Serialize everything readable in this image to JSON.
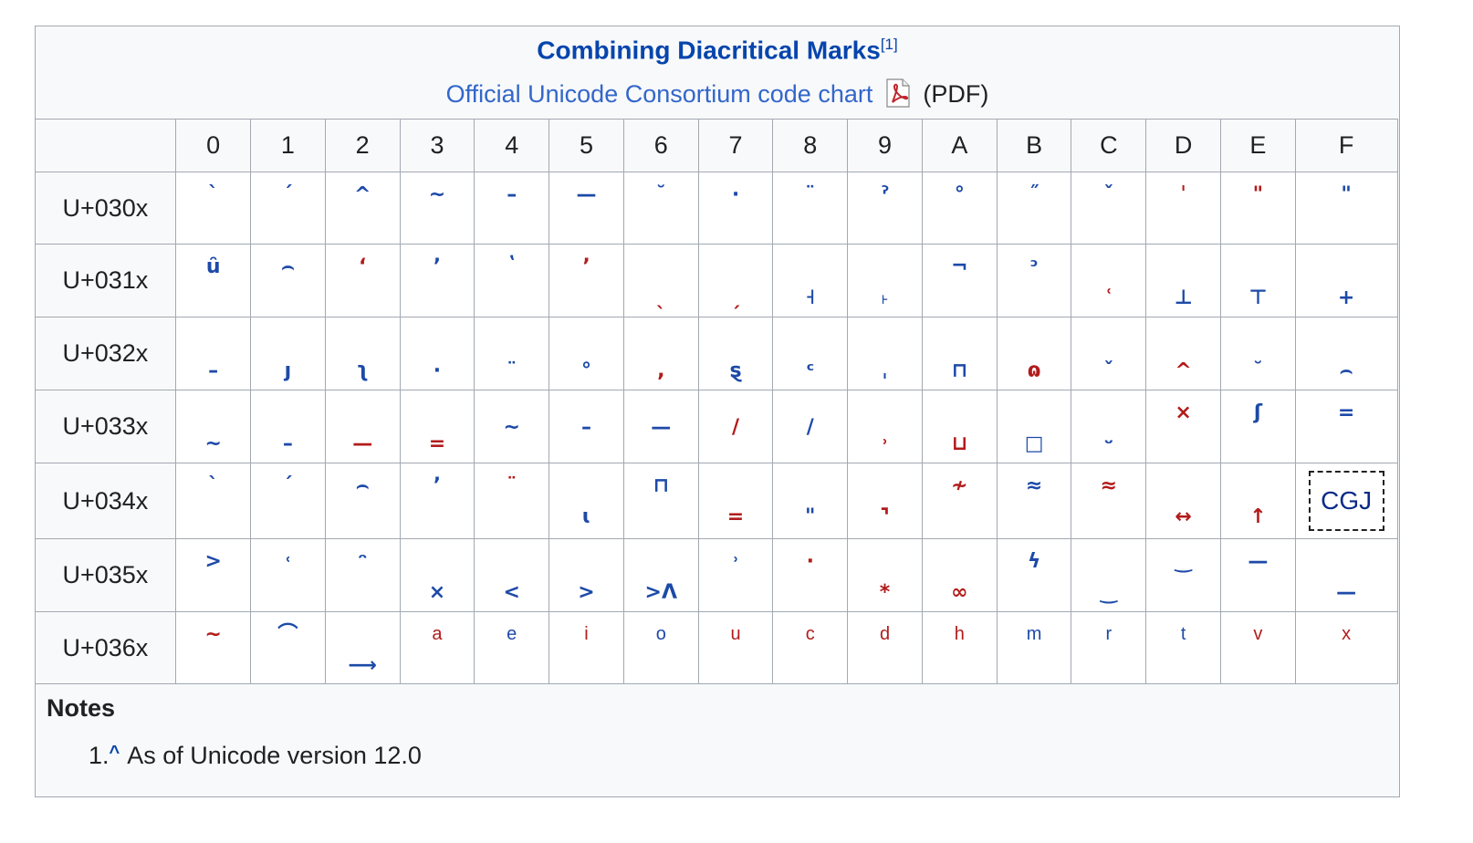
{
  "caption": {
    "title": "Combining Diacritical Marks",
    "title_ref": "[1]",
    "chart_link": "Official Unicode Consortium code chart",
    "pdf_icon": "pdf-file-icon",
    "pdf_label": "(PDF)"
  },
  "columns": [
    "0",
    "1",
    "2",
    "3",
    "4",
    "5",
    "6",
    "7",
    "8",
    "9",
    "A",
    "B",
    "C",
    "D",
    "E",
    "F"
  ],
  "rows": [
    {
      "label": "U+030x",
      "cells": [
        {
          "g": "`",
          "c": "blue",
          "p": "top"
        },
        {
          "g": "ˊ",
          "c": "blue",
          "p": "top"
        },
        {
          "g": "^",
          "c": "blue",
          "p": "top"
        },
        {
          "g": "~",
          "c": "blue",
          "p": "top"
        },
        {
          "g": "–",
          "c": "blue",
          "p": "top"
        },
        {
          "g": "—",
          "c": "blue",
          "p": "top"
        },
        {
          "g": "˘",
          "c": "blue",
          "p": "top"
        },
        {
          "g": "·",
          "c": "blue",
          "p": "top"
        },
        {
          "g": "¨",
          "c": "blue",
          "p": "top"
        },
        {
          "g": "ˀ",
          "c": "blue",
          "p": "top"
        },
        {
          "g": "°",
          "c": "blue",
          "p": "top"
        },
        {
          "g": "˝",
          "c": "blue",
          "p": "top"
        },
        {
          "g": "ˇ",
          "c": "blue",
          "p": "top"
        },
        {
          "g": "ˈ",
          "c": "red",
          "p": "top"
        },
        {
          "g": "\"",
          "c": "red",
          "p": "top"
        },
        {
          "g": "\"",
          "c": "blue",
          "p": "top"
        }
      ]
    },
    {
      "label": "U+031x",
      "cells": [
        {
          "g": "ȗ",
          "c": "blue",
          "p": "top"
        },
        {
          "g": "⌢",
          "c": "blue",
          "p": "top"
        },
        {
          "g": "ʻ",
          "c": "red",
          "p": "top"
        },
        {
          "g": "ʼ",
          "c": "blue",
          "p": "top"
        },
        {
          "g": "ʽ",
          "c": "blue",
          "p": "top"
        },
        {
          "g": "ʼ",
          "c": "red",
          "p": "top"
        },
        {
          "g": "ˎ",
          "c": "red",
          "p": "bot"
        },
        {
          "g": "ˏ",
          "c": "red",
          "p": "bot"
        },
        {
          "g": "˧",
          "c": "blue",
          "p": "bot"
        },
        {
          "g": "˫",
          "c": "blue",
          "p": "bot"
        },
        {
          "g": "¬",
          "c": "blue",
          "p": "top"
        },
        {
          "g": "ᵓ",
          "c": "blue",
          "p": "top"
        },
        {
          "g": "ʿ",
          "c": "red",
          "p": "bot"
        },
        {
          "g": "⊥",
          "c": "blue",
          "p": "bot"
        },
        {
          "g": "⊤",
          "c": "blue",
          "p": "bot"
        },
        {
          "g": "+",
          "c": "blue",
          "p": "bot"
        }
      ]
    },
    {
      "label": "U+032x",
      "cells": [
        {
          "g": "–",
          "c": "blue",
          "p": "bot"
        },
        {
          "g": "ȷ",
          "c": "blue",
          "p": "bot"
        },
        {
          "g": "ʅ",
          "c": "blue",
          "p": "bot"
        },
        {
          "g": "·",
          "c": "blue",
          "p": "bot"
        },
        {
          "g": "¨",
          "c": "blue",
          "p": "bot"
        },
        {
          "g": "°",
          "c": "blue",
          "p": "bot"
        },
        {
          "g": ",",
          "c": "red",
          "p": "bot"
        },
        {
          "g": "ȿ",
          "c": "blue",
          "p": "bot"
        },
        {
          "g": "ᶜ",
          "c": "blue",
          "p": "bot"
        },
        {
          "g": "ˌ",
          "c": "blue",
          "p": "bot"
        },
        {
          "g": "⊓",
          "c": "blue",
          "p": "bot"
        },
        {
          "g": "ɷ",
          "c": "red",
          "p": "bot"
        },
        {
          "g": "ˇ",
          "c": "blue",
          "p": "bot"
        },
        {
          "g": "^",
          "c": "red",
          "p": "bot"
        },
        {
          "g": "˘",
          "c": "blue",
          "p": "bot"
        },
        {
          "g": "⌢",
          "c": "blue",
          "p": "bot"
        }
      ]
    },
    {
      "label": "U+033x",
      "cells": [
        {
          "g": "~",
          "c": "blue",
          "p": "bot"
        },
        {
          "g": "–",
          "c": "blue",
          "p": "bot"
        },
        {
          "g": "—",
          "c": "red",
          "p": "bot"
        },
        {
          "g": "=",
          "c": "red",
          "p": "bot"
        },
        {
          "g": "~",
          "c": "blue",
          "p": "mid"
        },
        {
          "g": "–",
          "c": "blue",
          "p": "mid"
        },
        {
          "g": "—",
          "c": "blue",
          "p": "mid"
        },
        {
          "g": "/",
          "c": "red",
          "p": "mid"
        },
        {
          "g": "/",
          "c": "blue",
          "p": "mid"
        },
        {
          "g": "˒",
          "c": "red",
          "p": "bot"
        },
        {
          "g": "⊔",
          "c": "red",
          "p": "bot"
        },
        {
          "g": "□",
          "c": "blue",
          "p": "bot"
        },
        {
          "g": "ᵕ",
          "c": "blue",
          "p": "bot"
        },
        {
          "g": "×",
          "c": "red",
          "p": "top"
        },
        {
          "g": "ʃ",
          "c": "blue",
          "p": "top"
        },
        {
          "g": "=",
          "c": "blue",
          "p": "top"
        }
      ]
    },
    {
      "label": "U+034x",
      "cells": [
        {
          "g": "`",
          "c": "blue",
          "p": "top"
        },
        {
          "g": "ˊ",
          "c": "blue",
          "p": "top"
        },
        {
          "g": "⌢",
          "c": "blue",
          "p": "top"
        },
        {
          "g": "ʼ",
          "c": "blue",
          "p": "top"
        },
        {
          "g": "¨",
          "c": "red",
          "p": "top"
        },
        {
          "g": "ɩ",
          "c": "blue",
          "p": "bot"
        },
        {
          "g": "⊓",
          "c": "blue",
          "p": "top"
        },
        {
          "g": "=",
          "c": "red",
          "p": "bot"
        },
        {
          "g": "\"",
          "c": "blue",
          "p": "bot"
        },
        {
          "g": "⌝",
          "c": "red",
          "p": "bot"
        },
        {
          "g": "≁",
          "c": "red",
          "p": "top"
        },
        {
          "g": "≈",
          "c": "blue",
          "p": "top"
        },
        {
          "g": "≈",
          "c": "red",
          "p": "top"
        },
        {
          "g": "↔",
          "c": "red",
          "p": "bot"
        },
        {
          "g": "↑",
          "c": "red",
          "p": "bot"
        },
        {
          "g": "CGJ",
          "c": "cgj",
          "p": "mid"
        }
      ]
    },
    {
      "label": "U+035x",
      "cells": [
        {
          "g": ">",
          "c": "blue",
          "p": "top"
        },
        {
          "g": "˓",
          "c": "blue",
          "p": "top"
        },
        {
          "g": "ᵔ",
          "c": "blue",
          "p": "top"
        },
        {
          "g": "×",
          "c": "blue",
          "p": "bot"
        },
        {
          "g": "<",
          "c": "blue",
          "p": "bot"
        },
        {
          "g": ">",
          "c": "blue",
          "p": "bot"
        },
        {
          "g": ">Λ",
          "c": "blue",
          "p": "bot"
        },
        {
          "g": "˒",
          "c": "blue",
          "p": "top"
        },
        {
          "g": "·",
          "c": "red",
          "p": "top"
        },
        {
          "g": "*",
          "c": "red",
          "p": "bot"
        },
        {
          "g": "∞",
          "c": "red",
          "p": "bot"
        },
        {
          "g": "ϟ",
          "c": "blue",
          "p": "top"
        },
        {
          "g": "‿",
          "c": "blue",
          "p": "bot"
        },
        {
          "g": "‿",
          "c": "blue",
          "p": "top"
        },
        {
          "g": "—",
          "c": "blue",
          "p": "top"
        },
        {
          "g": "—",
          "c": "blue",
          "p": "bot"
        }
      ]
    },
    {
      "label": "U+036x",
      "cells": [
        {
          "g": "∼",
          "c": "red",
          "p": "top"
        },
        {
          "g": "⌒",
          "c": "blue",
          "p": "top"
        },
        {
          "g": "⟶",
          "c": "blue",
          "p": "bot"
        },
        {
          "g": "a",
          "c": "red",
          "p": "top",
          "l": true
        },
        {
          "g": "e",
          "c": "blue",
          "p": "top",
          "l": true
        },
        {
          "g": "i",
          "c": "red",
          "p": "top",
          "l": true
        },
        {
          "g": "o",
          "c": "blue",
          "p": "top",
          "l": true
        },
        {
          "g": "u",
          "c": "red",
          "p": "top",
          "l": true
        },
        {
          "g": "c",
          "c": "red",
          "p": "top",
          "l": true
        },
        {
          "g": "d",
          "c": "red",
          "p": "top",
          "l": true
        },
        {
          "g": "h",
          "c": "red",
          "p": "top",
          "l": true
        },
        {
          "g": "m",
          "c": "blue",
          "p": "top",
          "l": true
        },
        {
          "g": "r",
          "c": "blue",
          "p": "top",
          "l": true
        },
        {
          "g": "t",
          "c": "blue",
          "p": "top",
          "l": true
        },
        {
          "g": "v",
          "c": "red",
          "p": "top",
          "l": true
        },
        {
          "g": "x",
          "c": "red",
          "p": "top",
          "l": true
        }
      ]
    }
  ],
  "notes": {
    "title": "Notes",
    "items": [
      {
        "num": "1.",
        "caret": "^",
        "text": "As of Unicode version 12.0"
      }
    ]
  },
  "colors": {
    "link": "#0645ad",
    "link_light": "#3366cc",
    "glyph_blue": "#1d4aa8",
    "glyph_red": "#b31b1b",
    "border": "#a2a9b1"
  }
}
